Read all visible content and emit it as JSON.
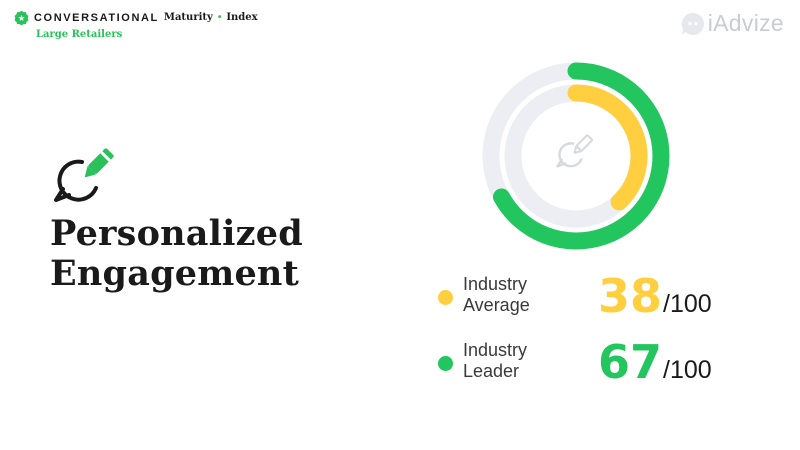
{
  "header": {
    "brand_main": "CONVERSATIONAL",
    "brand_maturity": "Maturity",
    "brand_separator": "•",
    "brand_index": "Index",
    "subtitle": "Large Retailers"
  },
  "logo": {
    "text": "iAdvize",
    "icon": "chat-bubble-logo-icon"
  },
  "section": {
    "icon": "chat-pencil-icon",
    "title_line1": "Personalized",
    "title_line2": "Engagement"
  },
  "colors": {
    "average": "#ffcf40",
    "leader": "#22c55e",
    "track": "#eceef3",
    "accent": "#2bc15a"
  },
  "chart_data": {
    "type": "donut",
    "max": 100,
    "center_icon": "chat-pencil-icon",
    "series": [
      {
        "label_line1": "Industry",
        "label_line2": "Average",
        "value": 38,
        "max_label": "/100",
        "color": "#ffcf40"
      },
      {
        "label_line1": "Industry",
        "label_line2": "Leader",
        "value": 67,
        "max_label": "/100",
        "color": "#22c55e"
      }
    ]
  }
}
